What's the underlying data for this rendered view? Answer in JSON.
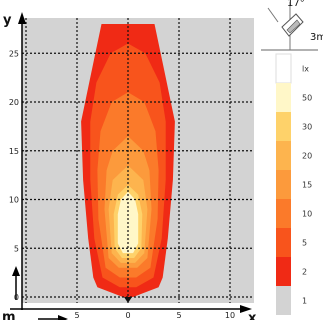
{
  "chart_data": {
    "type": "heatmap",
    "title": "",
    "xlabel": "x",
    "ylabel": "y",
    "origin_unit_label": "m",
    "xlim": [
      -11,
      11
    ],
    "ylim": [
      -0.5,
      28
    ],
    "x_ticks": [
      {
        "value": -10,
        "label": "10"
      },
      {
        "value": -5,
        "label": "5"
      },
      {
        "value": 0,
        "label": "0"
      },
      {
        "value": 5,
        "label": "5"
      },
      {
        "value": 10,
        "label": "10"
      }
    ],
    "y_ticks": [
      {
        "value": 0,
        "label": "0"
      },
      {
        "value": 5,
        "label": "5"
      },
      {
        "value": 10,
        "label": "10"
      },
      {
        "value": 15,
        "label": "15"
      },
      {
        "value": 20,
        "label": "20"
      },
      {
        "value": 25,
        "label": "25"
      }
    ],
    "grid": true,
    "background_color": "#d3d3d3",
    "contours": [
      {
        "level": "2",
        "color": "#f02a15",
        "half_width_profile": [
          [
            0,
            0.5
          ],
          [
            1,
            3.0
          ],
          [
            2,
            3.4
          ],
          [
            6,
            3.9
          ],
          [
            12,
            4.4
          ],
          [
            18,
            4.6
          ],
          [
            24,
            3.4
          ],
          [
            28,
            2.6
          ]
        ]
      },
      {
        "level": "5",
        "color": "#f8541c",
        "half_width_profile": [
          [
            1,
            0.8
          ],
          [
            2,
            2.5
          ],
          [
            6,
            3.3
          ],
          [
            12,
            3.7
          ],
          [
            18,
            3.7
          ],
          [
            22,
            3.1
          ],
          [
            25,
            1.7
          ],
          [
            26,
            0
          ]
        ]
      },
      {
        "level": "10",
        "color": "#fb7a2a",
        "half_width_profile": [
          [
            2,
            0.8
          ],
          [
            3,
            2.2
          ],
          [
            8,
            2.9
          ],
          [
            13,
            3.0
          ],
          [
            17,
            2.7
          ],
          [
            20,
            1.6
          ],
          [
            21,
            0
          ]
        ]
      },
      {
        "level": "15",
        "color": "#fc9a3c",
        "half_width_profile": [
          [
            3,
            0.9
          ],
          [
            4,
            1.9
          ],
          [
            9,
            2.3
          ],
          [
            13,
            2.1
          ],
          [
            15,
            1.5
          ],
          [
            16.5,
            0
          ]
        ]
      },
      {
        "level": "20",
        "color": "#fdb44e",
        "half_width_profile": [
          [
            3.5,
            0.7
          ],
          [
            4.5,
            1.6
          ],
          [
            9,
            1.9
          ],
          [
            12,
            1.5
          ],
          [
            13.5,
            0
          ]
        ]
      },
      {
        "level": "30",
        "color": "#fed26a",
        "half_width_profile": [
          [
            4,
            0.6
          ],
          [
            5,
            1.3
          ],
          [
            8.5,
            1.4
          ],
          [
            10.5,
            1.0
          ],
          [
            11.5,
            0
          ]
        ]
      },
      {
        "level": "50",
        "color": "#fff7c8",
        "half_width_profile": [
          [
            4.5,
            0.5
          ],
          [
            5.5,
            1.0
          ],
          [
            8.5,
            1.0
          ],
          [
            10,
            0.7
          ],
          [
            10.8,
            0
          ]
        ]
      }
    ],
    "legend": {
      "unit": "lx",
      "entries": [
        {
          "label": "lx",
          "color": "#ffffff"
        },
        {
          "label": "50",
          "color": "#fff7c8"
        },
        {
          "label": "30",
          "color": "#fed26a"
        },
        {
          "label": "20",
          "color": "#fdb44e"
        },
        {
          "label": "15",
          "color": "#fc9a3c"
        },
        {
          "label": "10",
          "color": "#fb7a2a"
        },
        {
          "label": "5",
          "color": "#f8541c"
        },
        {
          "label": "2",
          "color": "#f02a15"
        },
        {
          "label": "1",
          "color": "#d3d3d3"
        }
      ]
    },
    "lamp_annotation": {
      "angle_label": "17°",
      "height_label": "3m"
    }
  }
}
